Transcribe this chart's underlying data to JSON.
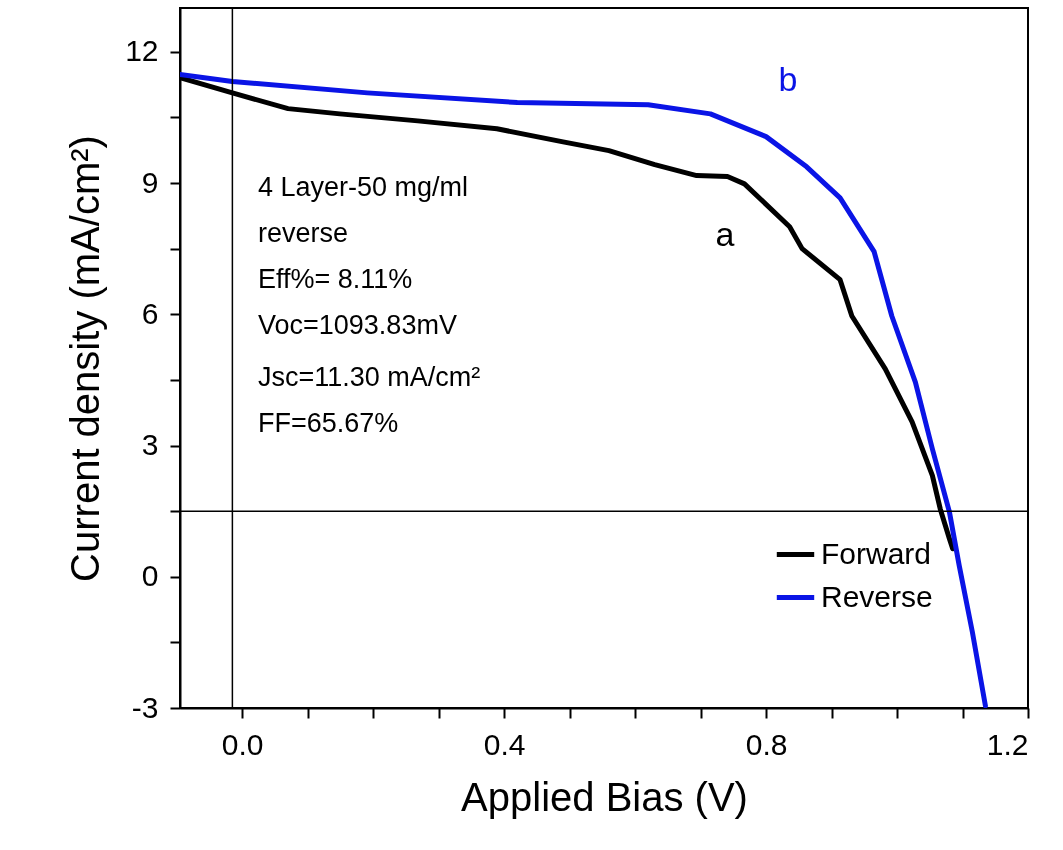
{
  "chart_data": {
    "type": "line",
    "xlabel": "Applied Bias (V)",
    "ylabel": "Current density (mA/cm²)",
    "xlim": [
      -0.095,
      1.2
    ],
    "ylim": [
      -3,
      13
    ],
    "xticks": [
      {
        "value": 0,
        "label": "0.0"
      },
      {
        "value": 0.1,
        "label": null
      },
      {
        "value": 0.2,
        "label": null
      },
      {
        "value": 0.3,
        "label": null
      },
      0.4,
      {
        "value": 0.5,
        "label": null
      },
      {
        "value": 0.6,
        "label": null
      },
      {
        "value": 0.7,
        "label": null
      },
      0.8,
      {
        "value": 0.9,
        "label": null
      },
      {
        "value": 1.0,
        "label": null
      },
      {
        "value": 1.1,
        "label": null
      },
      1.2
    ],
    "yticks": [
      -3,
      {
        "value": -1.5,
        "label": null
      },
      0,
      {
        "value": 1.5,
        "label": null
      },
      3,
      {
        "value": 4.5,
        "label": null
      },
      6,
      {
        "value": 7.5,
        "label": null
      },
      9,
      {
        "value": 10.5,
        "label": null
      },
      12
    ],
    "grid": false,
    "legend": "bottom right",
    "line_style": "solid",
    "marker": "none",
    "series": [
      {
        "name": "Forward",
        "color": "#000000",
        "x": [
          -0.095,
          -0.015,
          0.07,
          0.149,
          0.268,
          0.389,
          0.49,
          0.56,
          0.63,
          0.694,
          0.741,
          0.767,
          0.836,
          0.855,
          0.913,
          0.931,
          0.982,
          1.023,
          1.054,
          1.066,
          1.08,
          1.085
        ],
        "values": [
          11.41,
          11.06,
          10.7,
          10.58,
          10.42,
          10.24,
          9.94,
          9.74,
          9.42,
          9.17,
          9.15,
          8.98,
          8.0,
          7.5,
          6.79,
          5.96,
          4.75,
          3.54,
          2.31,
          1.55,
          0.87,
          0.64
        ]
      },
      {
        "name": "Reverse",
        "color": "#0a14e6",
        "x": [
          -0.095,
          -0.015,
          0.191,
          0.42,
          0.62,
          0.715,
          0.8,
          0.862,
          0.913,
          0.965,
          0.992,
          1.028,
          1.054,
          1.08,
          1.095,
          1.115,
          1.135
        ],
        "values": [
          11.48,
          11.32,
          11.06,
          10.84,
          10.79,
          10.58,
          10.06,
          9.37,
          8.66,
          7.43,
          5.96,
          4.45,
          2.92,
          1.48,
          0.25,
          -1.26,
          -2.95
        ]
      }
    ],
    "ref_lines": [
      {
        "axis": "x",
        "value": -0.015,
        "label": null,
        "color": "#000000"
      },
      {
        "axis": "y",
        "value": 1.5,
        "label": null,
        "color": "#000000"
      }
    ],
    "annotations": [
      "a",
      "b",
      "4 Layer-50 mg/ml",
      "reverse",
      "Eff%= 8.11%",
      "Voc=1093.83mV",
      "Jsc=11.30 mA/cm²",
      "FF=65.67%"
    ]
  }
}
